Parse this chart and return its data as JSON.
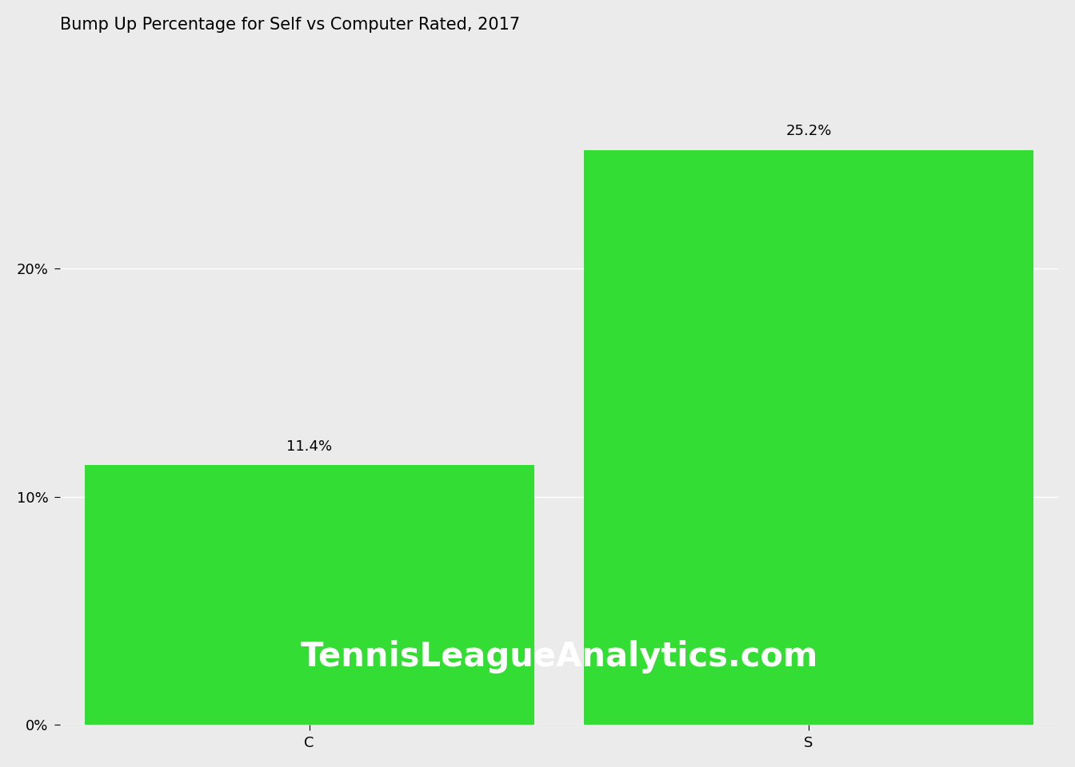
{
  "title": "Bump Up Percentage for Self vs Computer Rated, 2017",
  "categories": [
    "C",
    "S"
  ],
  "values": [
    11.4,
    25.2
  ],
  "bar_color": "#33DD33",
  "background_color": "#EBEBEB",
  "grid_color": "#FFFFFF",
  "title_fontsize": 15,
  "tick_fontsize": 13,
  "bar_label_fontsize": 13,
  "watermark_text": "TennisLeagueAnalytics.com",
  "watermark_color": "#FFFFFF",
  "watermark_fontsize": 30,
  "ylim": [
    0,
    30
  ],
  "yticks": [
    0,
    10,
    20
  ],
  "xlim": [
    -0.5,
    1.5
  ]
}
